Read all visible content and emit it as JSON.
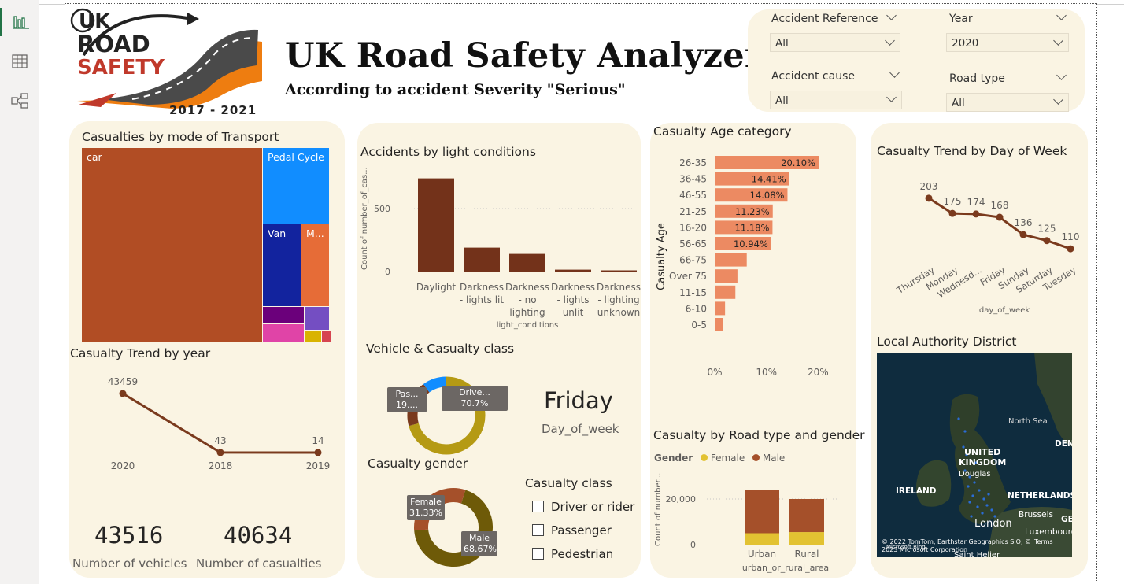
{
  "nav": {
    "items": [
      {
        "icon": "bar-chart-icon"
      },
      {
        "icon": "table-icon"
      },
      {
        "icon": "model-icon"
      }
    ]
  },
  "logo": {
    "text_uk": "UK",
    "text_road": "ROAD",
    "text_safety": "SAFETY",
    "years": "2017 - 2021"
  },
  "header": {
    "title": "UK Road Safety Analyzer",
    "subtitle": "According to accident Severity \"Serious\""
  },
  "slicers": [
    {
      "label": "Accident Reference",
      "value": "All"
    },
    {
      "label": "Year",
      "value": "2020"
    },
    {
      "label": "Accident cause",
      "value": "All"
    },
    {
      "label": "Road type",
      "value": "All"
    }
  ],
  "transport": {
    "title": "Casualties by mode of Transport",
    "tiles": [
      {
        "label": "car",
        "color": "#b14d24"
      },
      {
        "label": "Pedal Cycle",
        "color": "#118dff"
      },
      {
        "label": "Van",
        "color": "#12239e"
      },
      {
        "label": "M...",
        "color": "#e66c37"
      },
      {
        "label": "",
        "color": "#6b007b"
      },
      {
        "label": "",
        "color": "#744ec2"
      },
      {
        "label": "",
        "color": "#e044a7"
      },
      {
        "label": "",
        "color": "#d9b300"
      },
      {
        "label": "",
        "color": "#d64550"
      }
    ]
  },
  "year_trend": {
    "title": "Casualty Trend by year",
    "chart_data": {
      "type": "line",
      "categories": [
        "2020",
        "2018",
        "2019"
      ],
      "values": [
        43459,
        43,
        14
      ],
      "labels": [
        "43459",
        "43",
        "14"
      ],
      "color": "#7a3a1d"
    }
  },
  "kpis": [
    {
      "value": "43516",
      "label": "Number of vehicles"
    },
    {
      "value": "40634",
      "label": "Number of casualties"
    }
  ],
  "light": {
    "title": "Accidents by light conditions",
    "chart_data": {
      "type": "bar",
      "categories": [
        [
          "Daylight"
        ],
        [
          "Darkness",
          "- lights lit"
        ],
        [
          "Darkness",
          "- no",
          "lighting"
        ],
        [
          "Darkness",
          "- lights",
          "unlit"
        ],
        [
          "Darkness",
          "- lighting",
          "unknown"
        ]
      ],
      "values": [
        740,
        190,
        140,
        15,
        8
      ],
      "ylabel": "Count of number_of_cas...",
      "xlabel": "light_conditions",
      "ytick_labels": [
        "0",
        "500"
      ],
      "yticks": [
        0,
        500
      ],
      "ylim": [
        0,
        800
      ],
      "color": "#73321a"
    }
  },
  "vehicle_class": {
    "title": "Vehicle & Casualty class",
    "chart_data": {
      "type": "pie",
      "slices": [
        {
          "name": "Drive...",
          "value": 70.7,
          "label": "70.7%",
          "color": "#b59a14"
        },
        {
          "name": "Pas...",
          "value": 19.3,
          "label": "19....",
          "color": "#7a3a1d"
        },
        {
          "name": "",
          "value": 10.0,
          "color": "#118dff"
        }
      ]
    }
  },
  "day_card": {
    "value": "Friday",
    "label": "Day_of_week"
  },
  "gender": {
    "title": "Casualty gender",
    "chart_data": {
      "type": "pie",
      "slices": [
        {
          "name": "Male",
          "value": 68.67,
          "label": "68.67%",
          "color": "#6e5a08"
        },
        {
          "name": "Female",
          "value": 31.33,
          "label": "31.33%",
          "color": "#a5502a"
        }
      ]
    }
  },
  "class_slicer": {
    "title": "Casualty class",
    "options": [
      "Driver or rider",
      "Passenger",
      "Pedestrian"
    ]
  },
  "age": {
    "title": "Casualty Age category",
    "chart_data": {
      "type": "bar",
      "orientation": "horizontal",
      "categories": [
        "26-35",
        "36-45",
        "46-55",
        "21-25",
        "16-20",
        "56-65",
        "66-75",
        "Over 75",
        "11-15",
        "6-10",
        "0-5"
      ],
      "values": [
        20.1,
        14.41,
        14.08,
        11.23,
        11.18,
        10.94,
        6.2,
        4.4,
        4.0,
        2.0,
        1.6
      ],
      "labels": [
        "20.10%",
        "14.41%",
        "14.08%",
        "11.23%",
        "11.18%",
        "10.94%",
        "",
        "",
        "",
        "",
        ""
      ],
      "ylabel": "Casualty Age",
      "xtick_labels": [
        "0%",
        "10%",
        "20%"
      ],
      "xticks": [
        0,
        10,
        20
      ],
      "xlim": [
        0,
        20.1
      ],
      "color": "#ec8a62"
    }
  },
  "road_gender": {
    "title": "Casualty by Road type and gender",
    "legend_title": "Gender",
    "chart_data": {
      "type": "bar",
      "stacked": true,
      "categories": [
        "Urban",
        "Rural"
      ],
      "series": [
        {
          "name": "Female",
          "values": [
            5000,
            5500
          ],
          "color": "#e2c232"
        },
        {
          "name": "Male",
          "values": [
            19000,
            14500
          ],
          "color": "#a5502a"
        }
      ],
      "ylabel": "Count of number...",
      "xlabel": "urban_or_rural_area",
      "ytick_labels": [
        "0",
        "20,000"
      ],
      "yticks": [
        0,
        20000
      ],
      "ylim": [
        0,
        30000
      ]
    }
  },
  "dow_trend": {
    "title": "Casualty Trend by Day of Week",
    "chart_data": {
      "type": "line",
      "categories": [
        "Thursday",
        "Monday",
        "Wednesd...",
        "Friday",
        "Sunday",
        "Saturday",
        "Tuesday"
      ],
      "values": [
        203,
        175,
        174,
        168,
        136,
        125,
        110
      ],
      "labels": [
        "203",
        "175",
        "174",
        "168",
        "136",
        "125",
        "110"
      ],
      "xlabel": "day_of_week",
      "ylim": [
        100,
        210
      ],
      "color": "#7a3a1d"
    }
  },
  "district": {
    "title": "Local Authority District",
    "labels": {
      "north_sea": "North Sea",
      "uk1": "UNITED",
      "uk2": "KINGDOM",
      "douglas": "Douglas",
      "ireland": "IRELAND",
      "netherlands": "NETHERLANDS",
      "brussels": "Brussels",
      "london": "London",
      "luxembourg": "Luxembourg",
      "denmark": "DEN",
      "ge": "GE",
      "saint": "Saint Helier",
      "credit": "© 2022 TomTom, Earthstar Geographics SIO, © 2023 Microsoft Corporation",
      "terms": "Terms",
      "bing": "Microsoft Bing"
    }
  }
}
